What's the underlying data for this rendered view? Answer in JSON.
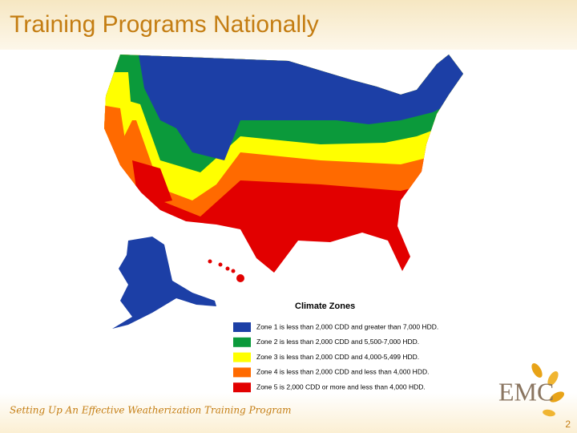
{
  "header": {
    "title": "Training Programs Nationally"
  },
  "legend": {
    "title": "Climate Zones",
    "zones": [
      {
        "label": "Zone 1 is less than 2,000 CDD and greater than 7,000 HDD.",
        "color": "#1c3fa6"
      },
      {
        "label": "Zone 2 is less than 2,000 CDD and 5,500-7,000 HDD.",
        "color": "#0b9a3b"
      },
      {
        "label": "Zone 3 is less than 2,000 CDD and 4,000-5,499 HDD.",
        "color": "#ffff00"
      },
      {
        "label": "Zone 4 is less than 2,000 CDD and less than 4,000 HDD.",
        "color": "#ff6a00"
      },
      {
        "label": "Zone 5 is 2,000 CDD or more and less than 4,000 HDD.",
        "color": "#e20000"
      }
    ]
  },
  "footer": {
    "text": "Setting Up An Effective Weatherization Training Program",
    "page": "2"
  },
  "logo": {
    "text": "EMC"
  }
}
